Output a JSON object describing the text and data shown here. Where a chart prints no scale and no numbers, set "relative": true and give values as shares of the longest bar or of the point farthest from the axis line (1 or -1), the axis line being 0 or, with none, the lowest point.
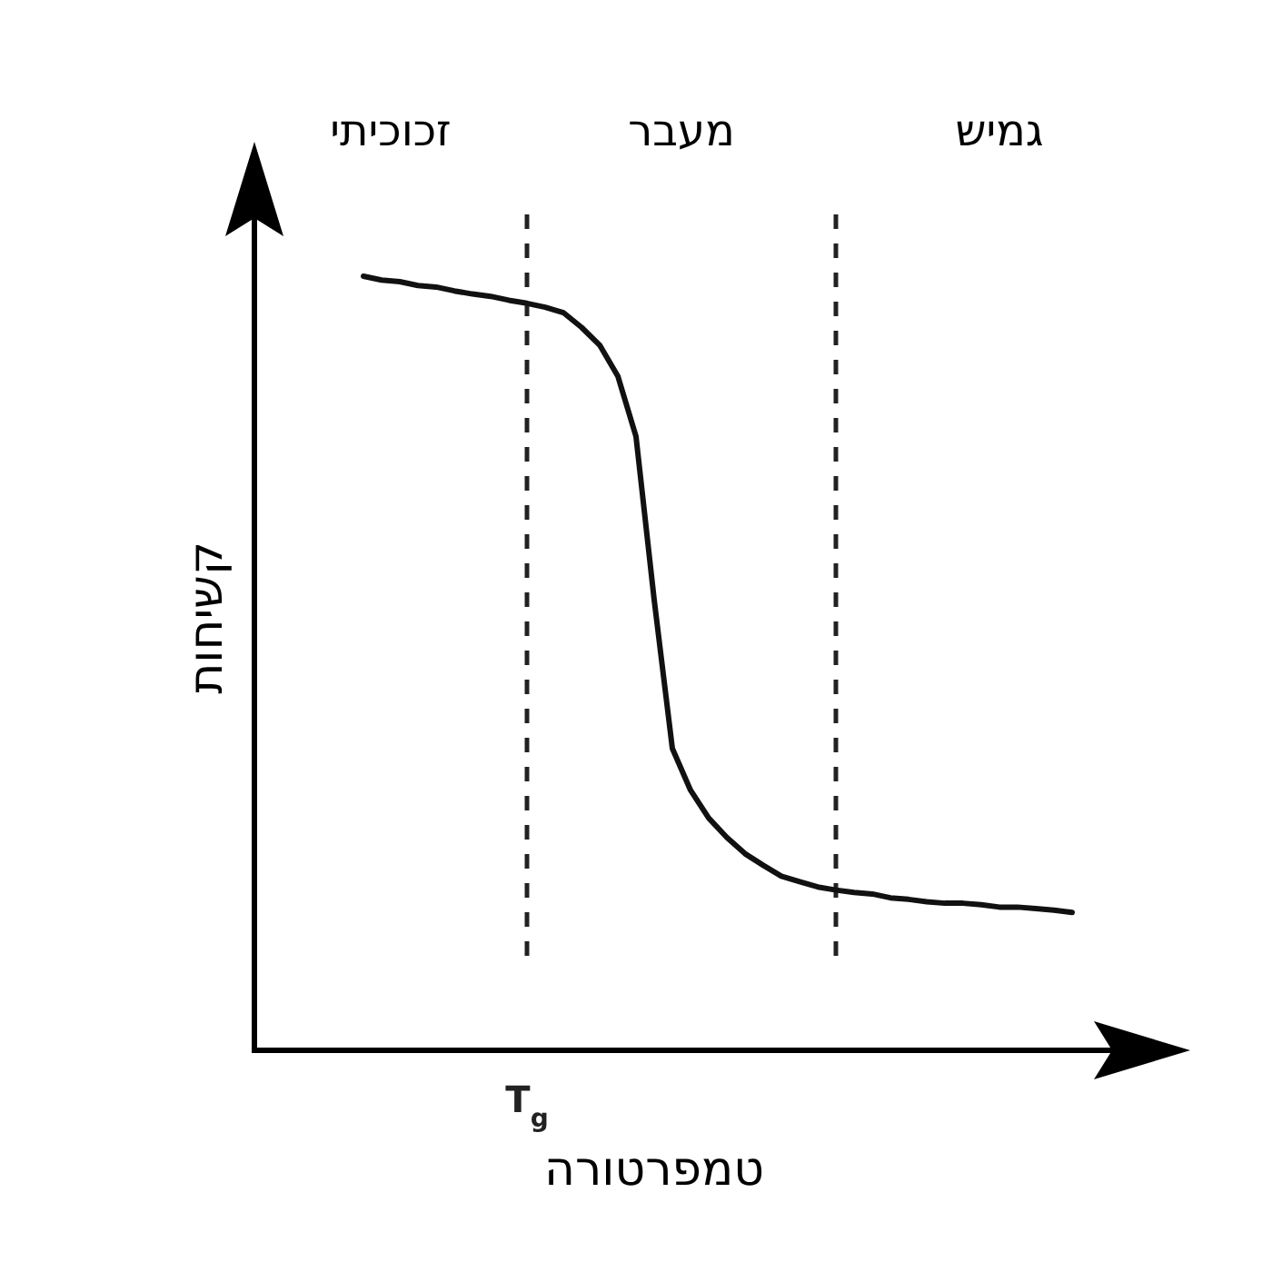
{
  "chart_data": {
    "type": "line",
    "relative": true,
    "xlabel": "טמפרטורה",
    "ylabel": "קשיחות",
    "annotations": [
      "זכוכיתי",
      "מעבר",
      "גמיש",
      "T$_{g}$"
    ],
    "categories": [
      null,
      null,
      null,
      null,
      null,
      null,
      null,
      null,
      null,
      null,
      null,
      null,
      null,
      null,
      null,
      null,
      null,
      null,
      null,
      null,
      null,
      null,
      null,
      null,
      null,
      null,
      null,
      null,
      null,
      null,
      null,
      null,
      null,
      null,
      null,
      null,
      null,
      null,
      null,
      null,
      null
    ],
    "series": [
      {
        "color": "#111111",
        "values": [
          null,
          1.0,
          0.995,
          0.993,
          0.988,
          0.986,
          0.981,
          0.977,
          0.974,
          0.969,
          0.965,
          0.96,
          0.953,
          0.934,
          0.911,
          0.871,
          0.793,
          0.582,
          0.39,
          0.336,
          0.3,
          0.275,
          0.254,
          0.239,
          0.225,
          0.218,
          0.211,
          0.207,
          0.204,
          0.202,
          0.197,
          0.195,
          0.192,
          0.19,
          0.19,
          0.188,
          0.185,
          0.185,
          0.183,
          0.181,
          0.178
        ]
      }
    ]
  }
}
